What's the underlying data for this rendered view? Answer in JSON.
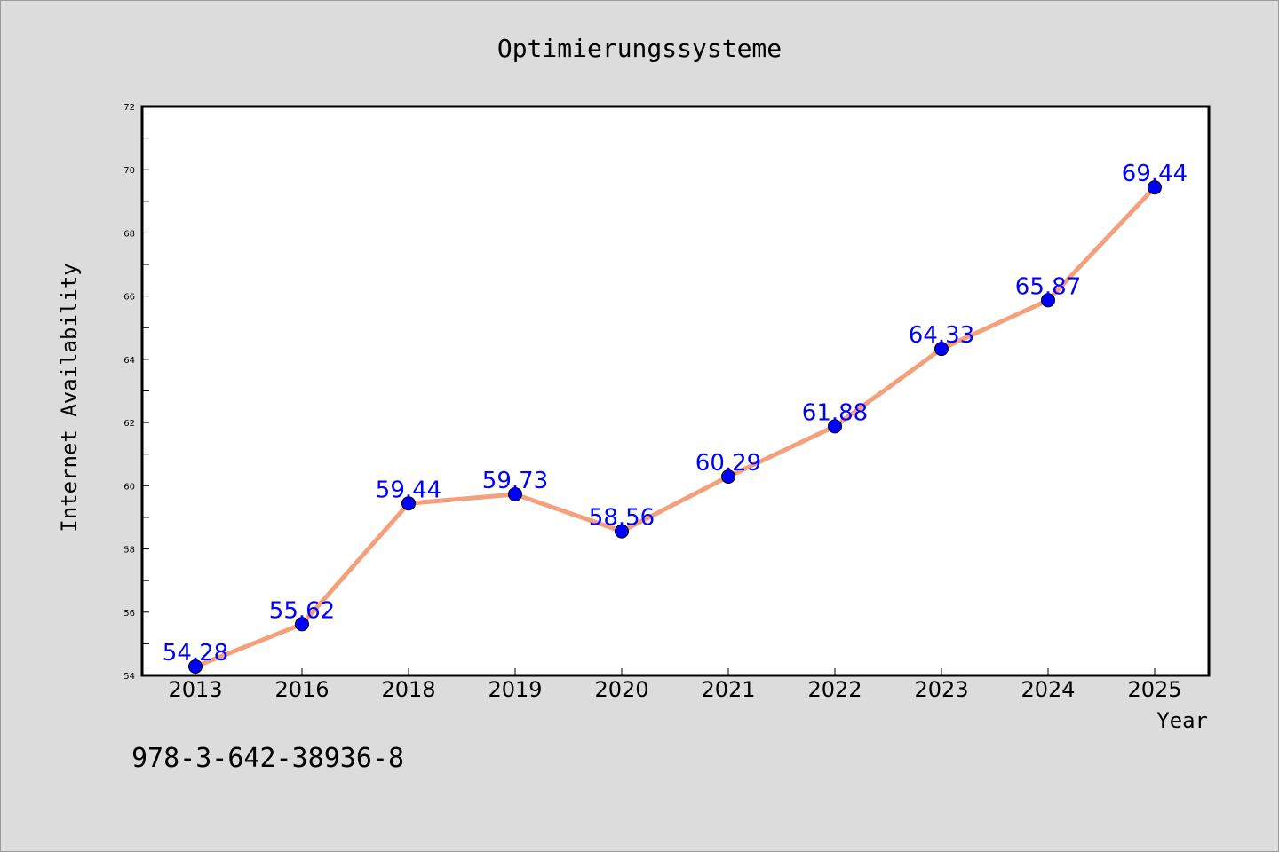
{
  "chart_data": {
    "type": "line",
    "title": "Optimierungssysteme",
    "xlabel": "Year",
    "ylabel": "Internet Availability",
    "categories": [
      "2013",
      "2016",
      "2018",
      "2019",
      "2020",
      "2021",
      "2022",
      "2023",
      "2024",
      "2025"
    ],
    "series": [
      {
        "values": [
          54.28,
          55.62,
          59.44,
          59.73,
          58.56,
          60.29,
          61.88,
          64.33,
          65.87,
          69.44
        ],
        "line_color": "#f4a07a",
        "marker_color": "#0000ff",
        "label_color": "#0000ff"
      }
    ],
    "ylim": [
      54,
      72
    ],
    "yticks": [
      54,
      56,
      58,
      60,
      62,
      64,
      66,
      68,
      70,
      72
    ],
    "grid": false,
    "legend": "none",
    "data_labels": true
  },
  "footer": {
    "isbn": "978-3-642-38936-8"
  }
}
